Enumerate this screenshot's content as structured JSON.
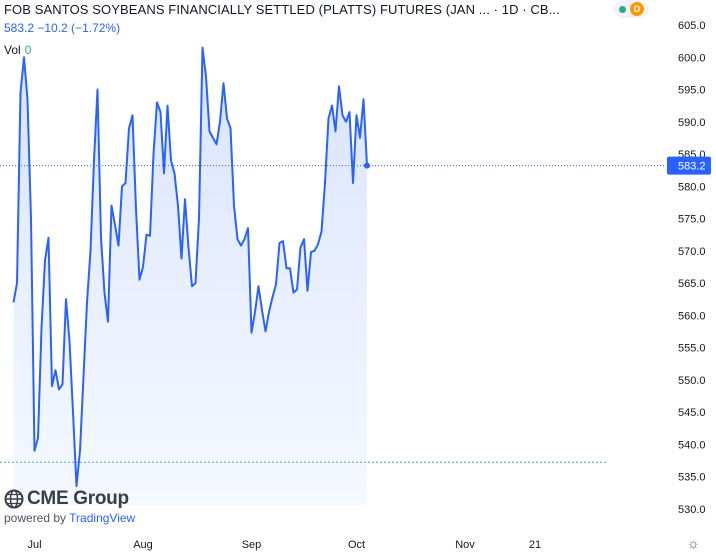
{
  "header": {
    "title": "FOB SANTOS SOYBEANS FINANCIALLY SETTLED (PLATTS) FUTURES (JAN ... · 1D · CB...",
    "quote": "583.2 −10.2 (−1.72%)",
    "vol_label": "Vol",
    "vol_value": "0",
    "badge_d": "D"
  },
  "branding": {
    "logo_text": "CME Group",
    "powered_by": "powered by",
    "tradingview": "TradingView"
  },
  "colors": {
    "line": "#2962ff",
    "fill": "#e3ebff",
    "last_price_bg": "#2962ff",
    "low_line": "#5aa7a7"
  },
  "chart_data": {
    "type": "area",
    "ylim": [
      528,
      607
    ],
    "y_ticks": [
      530,
      535,
      540,
      545,
      550,
      555,
      560,
      565,
      570,
      575,
      580,
      585,
      590,
      595,
      600,
      605
    ],
    "y_tick_labels": [
      "530.0",
      "535.0",
      "540.0",
      "545.0",
      "550.0",
      "555.0",
      "560.0",
      "565.0",
      "570.0",
      "575.0",
      "580.0",
      "585.0",
      "590.0",
      "595.0",
      "600.0",
      "605.0"
    ],
    "x_ticks": [
      {
        "label": "Jul",
        "day": 0
      },
      {
        "label": "Aug",
        "day": 31
      },
      {
        "label": "Sep",
        "day": 62
      },
      {
        "label": "Oct",
        "day": 92
      },
      {
        "label": "Nov",
        "day": 123
      },
      {
        "label": "21",
        "day": 143
      }
    ],
    "last_price": 583.2,
    "last_price_label": "583.2",
    "low_line": 537.2,
    "series": [
      {
        "values": [
          {
            "day": -6,
            "y": 562.0
          },
          {
            "day": -5,
            "y": 565.0
          },
          {
            "day": -4,
            "y": 594.5
          },
          {
            "day": -3,
            "y": 600.0
          },
          {
            "day": -2,
            "y": 593.5
          },
          {
            "day": -1,
            "y": 575.0
          },
          {
            "day": 0,
            "y": 539.0
          },
          {
            "day": 1,
            "y": 541.0
          },
          {
            "day": 2,
            "y": 558.0
          },
          {
            "day": 3,
            "y": 568.5
          },
          {
            "day": 4,
            "y": 572.0
          },
          {
            "day": 5,
            "y": 549.0
          },
          {
            "day": 6,
            "y": 551.5
          },
          {
            "day": 7,
            "y": 548.5
          },
          {
            "day": 8,
            "y": 549.3
          },
          {
            "day": 9,
            "y": 562.5
          },
          {
            "day": 10,
            "y": 556.0
          },
          {
            "day": 11,
            "y": 545.0
          },
          {
            "day": 12,
            "y": 533.5
          },
          {
            "day": 13,
            "y": 539.0
          },
          {
            "day": 14,
            "y": 550.5
          },
          {
            "day": 15,
            "y": 562.0
          },
          {
            "day": 16,
            "y": 570.0
          },
          {
            "day": 17,
            "y": 584.0
          },
          {
            "day": 18,
            "y": 595.0
          },
          {
            "day": 19,
            "y": 572.0
          },
          {
            "day": 20,
            "y": 563.5
          },
          {
            "day": 21,
            "y": 559.0
          },
          {
            "day": 22,
            "y": 577.0
          },
          {
            "day": 23,
            "y": 574.0
          },
          {
            "day": 24,
            "y": 570.8
          },
          {
            "day": 25,
            "y": 580.0
          },
          {
            "day": 26,
            "y": 580.5
          },
          {
            "day": 27,
            "y": 589.0
          },
          {
            "day": 28,
            "y": 591.0
          },
          {
            "day": 29,
            "y": 576.5
          },
          {
            "day": 30,
            "y": 565.5
          },
          {
            "day": 31,
            "y": 567.5
          },
          {
            "day": 32,
            "y": 572.5
          },
          {
            "day": 33,
            "y": 572.3
          },
          {
            "day": 34,
            "y": 585.0
          },
          {
            "day": 35,
            "y": 593.0
          },
          {
            "day": 36,
            "y": 591.5
          },
          {
            "day": 37,
            "y": 582.0
          },
          {
            "day": 38,
            "y": 592.5
          },
          {
            "day": 39,
            "y": 584.0
          },
          {
            "day": 40,
            "y": 582.0
          },
          {
            "day": 41,
            "y": 577.0
          },
          {
            "day": 42,
            "y": 568.8
          },
          {
            "day": 43,
            "y": 578.0
          },
          {
            "day": 44,
            "y": 570.5
          },
          {
            "day": 45,
            "y": 564.5
          },
          {
            "day": 46,
            "y": 565.0
          },
          {
            "day": 47,
            "y": 575.0
          },
          {
            "day": 48,
            "y": 601.5
          },
          {
            "day": 49,
            "y": 597.0
          },
          {
            "day": 50,
            "y": 588.5
          },
          {
            "day": 51,
            "y": 587.5
          },
          {
            "day": 52,
            "y": 586.5
          },
          {
            "day": 53,
            "y": 590.0
          },
          {
            "day": 54,
            "y": 596.0
          },
          {
            "day": 55,
            "y": 590.5
          },
          {
            "day": 56,
            "y": 589.0
          },
          {
            "day": 57,
            "y": 577.0
          },
          {
            "day": 58,
            "y": 571.8
          },
          {
            "day": 59,
            "y": 570.8
          },
          {
            "day": 60,
            "y": 571.8
          },
          {
            "day": 61,
            "y": 573.5
          },
          {
            "day": 62,
            "y": 557.3
          },
          {
            "day": 63,
            "y": 560.5
          },
          {
            "day": 64,
            "y": 564.5
          },
          {
            "day": 65,
            "y": 560.8
          },
          {
            "day": 66,
            "y": 557.5
          },
          {
            "day": 67,
            "y": 560.5
          },
          {
            "day": 68,
            "y": 562.8
          },
          {
            "day": 69,
            "y": 564.8
          },
          {
            "day": 70,
            "y": 571.2
          },
          {
            "day": 71,
            "y": 571.5
          },
          {
            "day": 72,
            "y": 567.3
          },
          {
            "day": 73,
            "y": 567.3
          },
          {
            "day": 74,
            "y": 563.5
          },
          {
            "day": 75,
            "y": 564.0
          },
          {
            "day": 76,
            "y": 570.5
          },
          {
            "day": 77,
            "y": 571.8
          },
          {
            "day": 78,
            "y": 563.8
          },
          {
            "day": 79,
            "y": 569.8
          },
          {
            "day": 80,
            "y": 570.0
          },
          {
            "day": 81,
            "y": 571.0
          },
          {
            "day": 82,
            "y": 573.0
          },
          {
            "day": 83,
            "y": 580.5
          },
          {
            "day": 84,
            "y": 590.5
          },
          {
            "day": 85,
            "y": 592.5
          },
          {
            "day": 86,
            "y": 588.5
          },
          {
            "day": 87,
            "y": 595.5
          },
          {
            "day": 88,
            "y": 591.0
          },
          {
            "day": 89,
            "y": 590.0
          },
          {
            "day": 90,
            "y": 591.5
          },
          {
            "day": 91,
            "y": 580.5
          },
          {
            "day": 92,
            "y": 591.0
          },
          {
            "day": 93,
            "y": 587.5
          },
          {
            "day": 94,
            "y": 593.5
          },
          {
            "day": 95,
            "y": 583.2
          }
        ]
      }
    ]
  }
}
